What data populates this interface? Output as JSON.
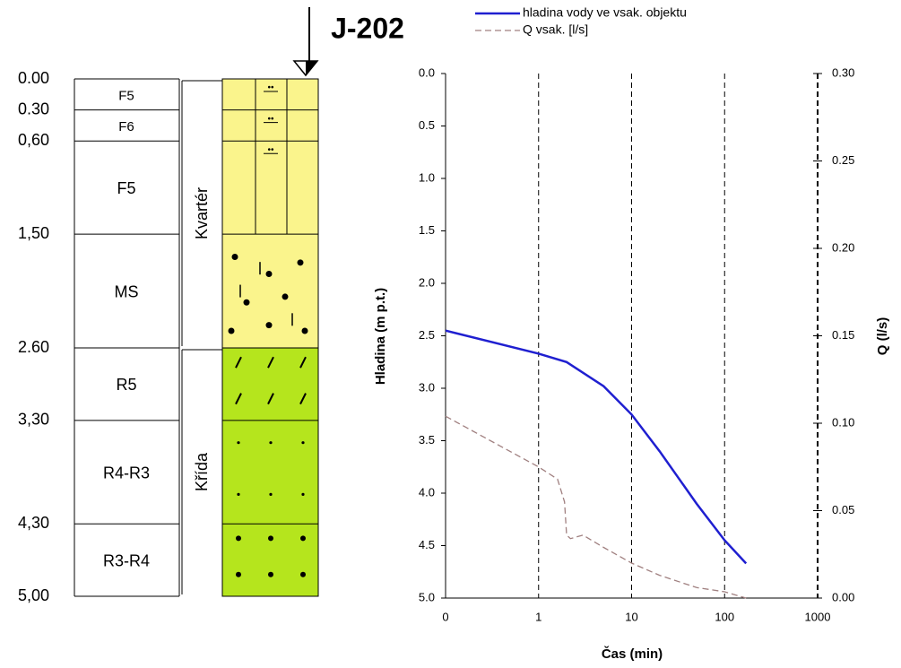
{
  "log": {
    "title": "J-202",
    "depths": [
      {
        "value": 0,
        "label": "0.00"
      },
      {
        "value": 0.3,
        "label": "0.30"
      },
      {
        "value": 0.6,
        "label": "0,60"
      },
      {
        "value": 1.5,
        "label": "1,50"
      },
      {
        "value": 2.6,
        "label": "2.60"
      },
      {
        "value": 3.3,
        "label": "3,30"
      },
      {
        "value": 4.3,
        "label": "4,30"
      },
      {
        "value": 5,
        "label": "5,00"
      }
    ],
    "layers": [
      "F5",
      "F6",
      "F5",
      "MS",
      "R5",
      "R4-R3",
      "R3-R4"
    ],
    "formations": [
      {
        "name": "Kvartér",
        "color": "#faf48c"
      },
      {
        "name": "Křída",
        "color": "#b5e51d"
      }
    ]
  },
  "chart_data": {
    "type": "line",
    "x_label": "Čas (min)",
    "y_label": "Hladina (m p.t.)",
    "y2_label": "Q (l/s)",
    "xscale": "log",
    "xlim": [
      0.1,
      1000
    ],
    "xticks": [
      {
        "value": 0.1,
        "label": "0"
      },
      1,
      10,
      100,
      1000
    ],
    "ylim": [
      0,
      5
    ],
    "y_inverted": true,
    "yticks": [
      {
        "value": 0,
        "label": "0.0"
      },
      {
        "value": 0.5,
        "label": "0.5"
      },
      {
        "value": 1,
        "label": "1.0"
      },
      {
        "value": 1.5,
        "label": "1.5"
      },
      {
        "value": 2,
        "label": "2.0"
      },
      {
        "value": 2.5,
        "label": "2.5"
      },
      {
        "value": 3,
        "label": "3.0"
      },
      {
        "value": 3.5,
        "label": "3.5"
      },
      {
        "value": 4,
        "label": "4.0"
      },
      {
        "value": 4.5,
        "label": "4.5"
      },
      {
        "value": 5,
        "label": "5.0"
      }
    ],
    "y2lim": [
      0,
      0.3
    ],
    "y2ticks": [
      {
        "value": 0,
        "label": "0.00"
      },
      {
        "value": 0.05,
        "label": "0.05"
      },
      {
        "value": 0.1,
        "label": "0.10"
      },
      {
        "value": 0.15,
        "label": "0.15"
      },
      {
        "value": 0.2,
        "label": "0.20"
      },
      {
        "value": 0.25,
        "label": "0.25"
      },
      {
        "value": 0.3,
        "label": "0.30"
      }
    ],
    "grid": true,
    "series": [
      {
        "name": "hladina vody ve vsak. objektu",
        "color": "#1f1fd0",
        "dash": false,
        "x": [
          0.1,
          1,
          2,
          5,
          10,
          20,
          50,
          100,
          170
        ],
        "values": [
          2.45,
          2.67,
          2.75,
          2.98,
          3.25,
          3.6,
          4.1,
          4.45,
          4.67
        ]
      },
      {
        "name": "Q vsak. [l/s]",
        "color": "#a08080",
        "dash": true,
        "axis": "y2",
        "x": [
          0.1,
          1,
          1.6,
          1.9,
          2.0,
          2.2,
          3,
          5,
          10,
          20,
          50,
          100,
          170
        ],
        "values": [
          0.104,
          0.075,
          0.068,
          0.055,
          0.036,
          0.034,
          0.036,
          0.029,
          0.02,
          0.013,
          0.006,
          0.0036,
          0
        ]
      }
    ]
  }
}
